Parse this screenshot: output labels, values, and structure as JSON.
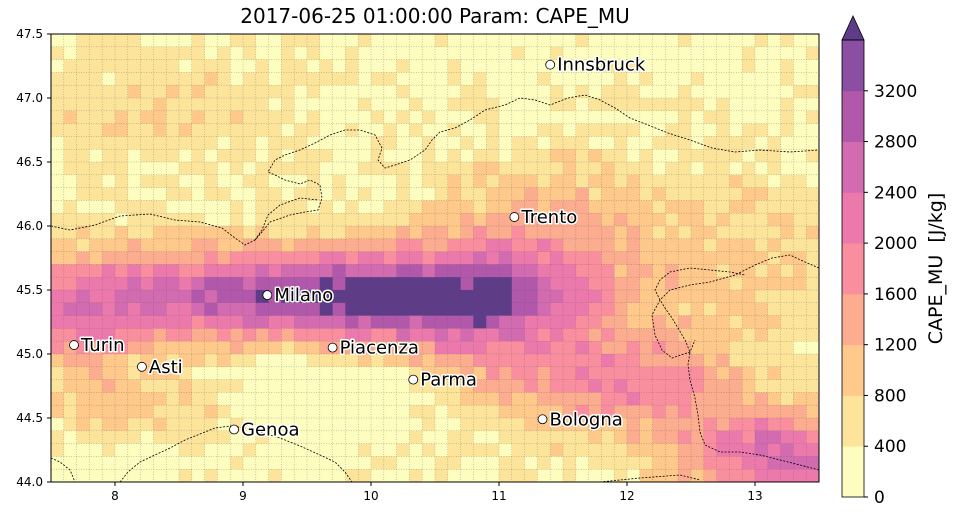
{
  "title": "2017-06-25 01:00:00 Param: CAPE_MU",
  "chart_data": {
    "type": "heatmap",
    "title": "2017-06-25 01:00:00 Param: CAPE_MU",
    "xlabel": "",
    "ylabel": "",
    "x_ticks": [
      "8",
      "9",
      "10",
      "11",
      "12",
      "13"
    ],
    "y_ticks": [
      "44.0",
      "44.5",
      "45.0",
      "45.5",
      "46.0",
      "46.5",
      "47.0",
      "47.5"
    ],
    "xlim": [
      7.5,
      13.5
    ],
    "ylim": [
      44.0,
      47.5
    ],
    "grid": true,
    "colorbar": {
      "label": "CAPE_MU  [J/kg]",
      "ticks": [
        "0",
        "400",
        "800",
        "1200",
        "1600",
        "2000",
        "2400",
        "2800",
        "3200"
      ],
      "levels": [
        0,
        400,
        800,
        1200,
        1600,
        2000,
        2400,
        2800,
        3200
      ],
      "colors": [
        "#fcfdbf",
        "#fde49b",
        "#fec98a",
        "#fcac8f",
        "#f98e9f",
        "#ec79ac",
        "#d26bb0",
        "#b158aa",
        "#8a4ea3"
      ],
      "extend_color": "#5e3c88",
      "extend": "max"
    },
    "cities": [
      {
        "name": "Innsbruck",
        "lon": 11.4,
        "lat": 47.26
      },
      {
        "name": "Trento",
        "lon": 11.12,
        "lat": 46.07
      },
      {
        "name": "Milano",
        "lon": 9.19,
        "lat": 45.46
      },
      {
        "name": "Turin",
        "lon": 7.68,
        "lat": 45.07
      },
      {
        "name": "Asti",
        "lon": 8.21,
        "lat": 44.9
      },
      {
        "name": "Piacenza",
        "lon": 9.7,
        "lat": 45.05
      },
      {
        "name": "Parma",
        "lon": 10.33,
        "lat": 44.8
      },
      {
        "name": "Genoa",
        "lon": 8.93,
        "lat": 44.41
      },
      {
        "name": "Bologna",
        "lon": 11.34,
        "lat": 44.49
      }
    ]
  }
}
